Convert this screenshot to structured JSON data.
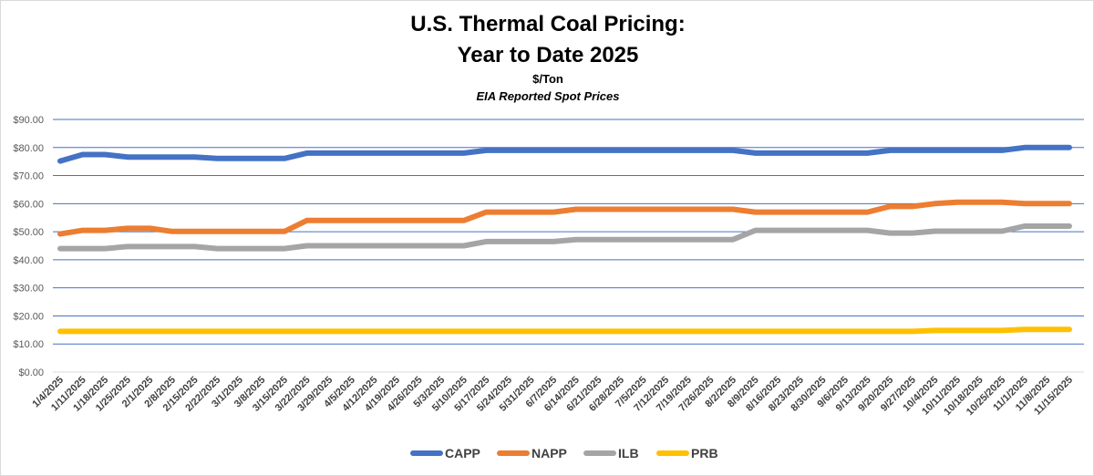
{
  "chart_data": {
    "type": "line",
    "title": "U.S. Thermal Coal Pricing:",
    "title2": "Year to Date 2025",
    "subtitle": "$/Ton",
    "subtitle2": "EIA Reported Spot Prices",
    "ylim": [
      0,
      90
    ],
    "yticks": [
      "$0.00",
      "$10.00",
      "$20.00",
      "$30.00",
      "$40.00",
      "$50.00",
      "$60.00",
      "$70.00",
      "$80.00",
      "$90.00"
    ],
    "grid": true,
    "legend": "bottom",
    "categories": [
      "1/4/2025",
      "1/11/2025",
      "1/18/2025",
      "1/25/2025",
      "2/1/2025",
      "2/8/2025",
      "2/15/2025",
      "2/22/2025",
      "3/1/2025",
      "3/8/2025",
      "3/15/2025",
      "3/22/2025",
      "3/29/2025",
      "4/5/2025",
      "4/12/2025",
      "4/19/2025",
      "4/26/2025",
      "5/3/2025",
      "5/10/2025",
      "5/17/2025",
      "5/24/2025",
      "5/31/2025",
      "6/7/2025",
      "6/14/2025",
      "6/21/2025",
      "6/28/2025",
      "7/5/2025",
      "7/12/2025",
      "7/19/2025",
      "7/26/2025",
      "8/2/2025",
      "8/9/2025",
      "8/16/2025",
      "8/23/2025",
      "8/30/2025",
      "9/6/2025",
      "9/13/2025",
      "9/20/2025",
      "9/27/2025",
      "10/4/2025",
      "10/11/2025",
      "10/18/2025",
      "10/25/2025",
      "11/1/2025",
      "11/8/2025",
      "11/15/2025"
    ],
    "series": [
      {
        "name": "CAPP",
        "color": "#4472c4",
        "values": [
          75.2,
          77.5,
          77.5,
          76.6,
          76.6,
          76.6,
          76.6,
          76.1,
          76.1,
          76.1,
          76.1,
          78,
          78,
          78,
          78,
          78,
          78,
          78,
          78,
          79,
          79,
          79,
          79,
          79,
          79,
          79,
          79,
          79,
          79,
          79,
          79,
          78,
          78,
          78,
          78,
          78,
          78,
          79,
          79,
          79,
          79,
          79,
          79,
          80,
          80,
          80
        ]
      },
      {
        "name": "NAPP",
        "color": "#ed7d31",
        "values": [
          49.2,
          50.5,
          50.5,
          51.2,
          51.2,
          50.1,
          50.1,
          50.1,
          50.1,
          50.1,
          50.1,
          54,
          54,
          54,
          54,
          54,
          54,
          54,
          54,
          57,
          57,
          57,
          57,
          58,
          58,
          58,
          58,
          58,
          58,
          58,
          58,
          57,
          57,
          57,
          57,
          57,
          57,
          59,
          59,
          60,
          60.5,
          60.5,
          60.5,
          60,
          60,
          60
        ]
      },
      {
        "name": "ILB",
        "color": "#a5a5a5",
        "values": [
          44,
          44,
          44,
          44.7,
          44.7,
          44.7,
          44.7,
          44,
          44,
          44,
          44,
          45,
          45,
          45,
          45,
          45,
          45,
          45,
          45,
          46.5,
          46.5,
          46.5,
          46.5,
          47.2,
          47.2,
          47.2,
          47.2,
          47.2,
          47.2,
          47.2,
          47.2,
          50.5,
          50.5,
          50.5,
          50.5,
          50.5,
          50.5,
          49.5,
          49.5,
          50.2,
          50.2,
          50.2,
          50.2,
          52,
          52,
          52
        ]
      },
      {
        "name": "PRB",
        "color": "#ffc000",
        "values": [
          14.5,
          14.5,
          14.5,
          14.5,
          14.5,
          14.5,
          14.5,
          14.5,
          14.5,
          14.5,
          14.5,
          14.5,
          14.5,
          14.5,
          14.5,
          14.5,
          14.5,
          14.5,
          14.5,
          14.5,
          14.5,
          14.5,
          14.5,
          14.5,
          14.5,
          14.5,
          14.5,
          14.5,
          14.5,
          14.5,
          14.5,
          14.5,
          14.5,
          14.5,
          14.5,
          14.5,
          14.5,
          14.5,
          14.5,
          14.8,
          14.8,
          14.8,
          14.8,
          15.2,
          15.2,
          15.2
        ]
      }
    ]
  }
}
